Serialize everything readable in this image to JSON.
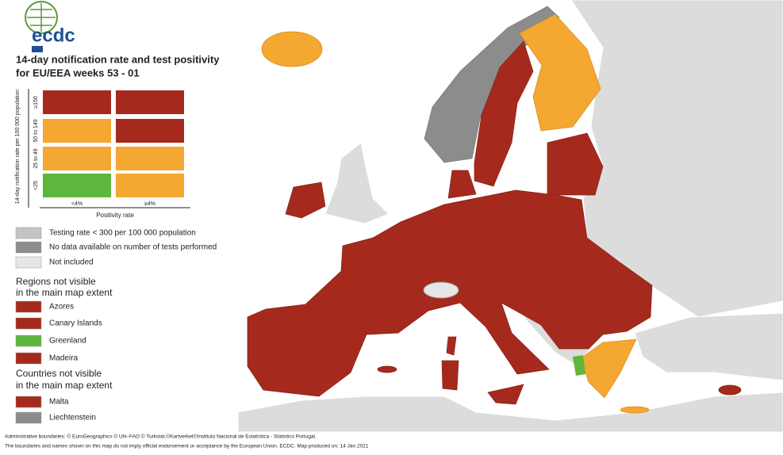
{
  "logo": "ecdc",
  "title": [
    "14-day notification rate and test positivity",
    "for EU/EEA weeks 53 - 01"
  ],
  "matrix": {
    "y_axis_label": "14-day notification rate per 100 000 population",
    "row_labels": [
      "≥150",
      "50 to 149",
      "25 to 49",
      "<25"
    ],
    "column_labels": [
      "<4%",
      "≥4%"
    ],
    "x_axis_label": "Positivity rate",
    "cells": [
      [
        "#a52a1d",
        "#a52a1d"
      ],
      [
        "#f4a731",
        "#a52a1d"
      ],
      [
        "#f4a731",
        "#f4a731"
      ],
      [
        "#5fb63c",
        "#f4a731"
      ]
    ]
  },
  "testing_legend": [
    {
      "label": "Testing rate < 300 per 100 000 population",
      "color": "#c4c4c4"
    },
    {
      "label": "No data available on number of tests performed",
      "color": "#8c8c8c"
    },
    {
      "label": "Not included",
      "color": "#e6e6e6"
    }
  ],
  "regions": {
    "heading": [
      "Regions not visible",
      "in the main map extent"
    ],
    "items": [
      {
        "label": "Azores",
        "color": "#a52a1d"
      },
      {
        "label": "Canary Islands",
        "color": "#a52a1d"
      },
      {
        "label": "Greenland",
        "color": "#5fb63c"
      },
      {
        "label": "Madeira",
        "color": "#a52a1d"
      }
    ]
  },
  "countries": {
    "heading": [
      "Countries not visible",
      "in the main map extent"
    ],
    "items": [
      {
        "label": "Malta",
        "color": "#a52a1d"
      },
      {
        "label": "Liechtenstein",
        "color": "#8c8c8c"
      }
    ]
  },
  "footer": [
    "Administrative boundaries: © EuroGeographics © UN–FAO © Turkstat.©Kartverket©Instituto Nacional de Estatística - Statistics Portugal.",
    "The boundaries and names shown on this map do not imply official endorsement or acceptance by the European Union. ECDC. Map produced on: 14 Jan 2021"
  ]
}
